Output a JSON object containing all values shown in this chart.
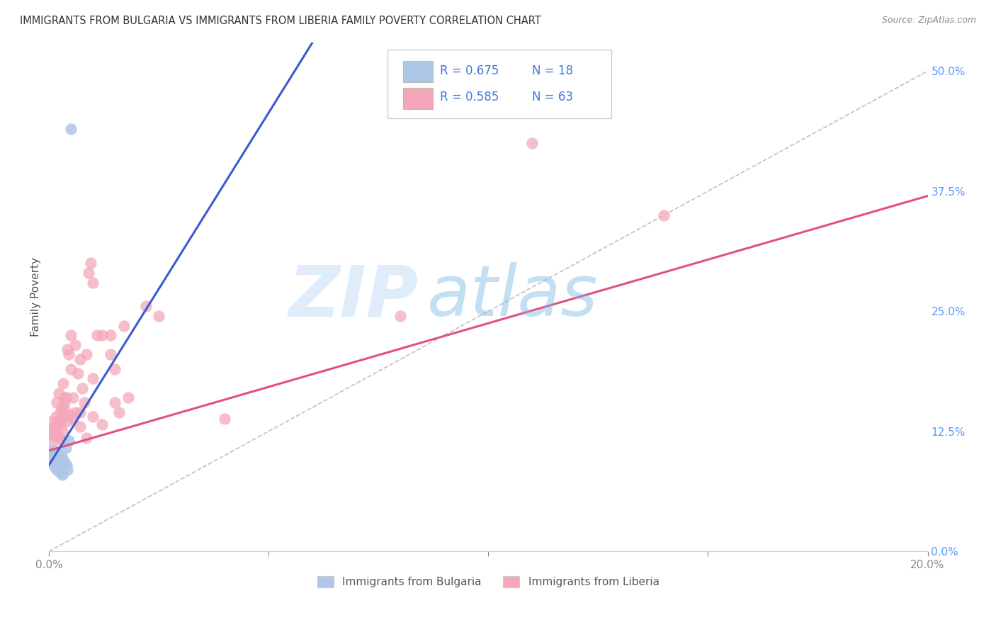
{
  "title": "IMMIGRANTS FROM BULGARIA VS IMMIGRANTS FROM LIBERIA FAMILY POVERTY CORRELATION CHART",
  "source": "Source: ZipAtlas.com",
  "ylabel": "Family Poverty",
  "y_tick_labels": [
    "0.0%",
    "12.5%",
    "25.0%",
    "37.5%",
    "50.0%"
  ],
  "y_tick_values": [
    0.0,
    12.5,
    25.0,
    37.5,
    50.0
  ],
  "xlim": [
    0.0,
    20.0
  ],
  "ylim": [
    0.0,
    53.0
  ],
  "bulgaria_color": "#aec6e8",
  "liberia_color": "#f4a7b9",
  "bulgaria_line_color": "#3a5ccc",
  "liberia_line_color": "#e05080",
  "diagonal_color": "#c0c0c0",
  "watermark_zip": "ZIP",
  "watermark_atlas": "atlas",
  "bulgaria_scatter": [
    [
      0.05,
      10.5
    ],
    [
      0.08,
      9.8
    ],
    [
      0.1,
      9.2
    ],
    [
      0.12,
      8.8
    ],
    [
      0.15,
      9.0
    ],
    [
      0.18,
      8.5
    ],
    [
      0.2,
      10.2
    ],
    [
      0.22,
      9.5
    ],
    [
      0.25,
      8.2
    ],
    [
      0.28,
      9.8
    ],
    [
      0.3,
      8.0
    ],
    [
      0.32,
      9.5
    ],
    [
      0.35,
      9.2
    ],
    [
      0.38,
      10.8
    ],
    [
      0.4,
      9.0
    ],
    [
      0.42,
      8.5
    ],
    [
      0.45,
      11.5
    ],
    [
      0.5,
      44.0
    ]
  ],
  "liberia_scatter": [
    [
      0.05,
      12.2
    ],
    [
      0.06,
      13.5
    ],
    [
      0.08,
      12.5
    ],
    [
      0.1,
      11.5
    ],
    [
      0.1,
      13.0
    ],
    [
      0.12,
      10.5
    ],
    [
      0.15,
      14.0
    ],
    [
      0.15,
      12.8
    ],
    [
      0.15,
      12.0
    ],
    [
      0.18,
      15.5
    ],
    [
      0.2,
      13.5
    ],
    [
      0.2,
      12.0
    ],
    [
      0.22,
      16.5
    ],
    [
      0.25,
      14.5
    ],
    [
      0.25,
      13.2
    ],
    [
      0.28,
      15.0
    ],
    [
      0.3,
      13.8
    ],
    [
      0.3,
      12.5
    ],
    [
      0.3,
      11.5
    ],
    [
      0.32,
      17.5
    ],
    [
      0.35,
      16.0
    ],
    [
      0.35,
      15.5
    ],
    [
      0.35,
      14.8
    ],
    [
      0.38,
      16.0
    ],
    [
      0.4,
      14.0
    ],
    [
      0.4,
      13.5
    ],
    [
      0.42,
      21.0
    ],
    [
      0.45,
      20.5
    ],
    [
      0.5,
      22.5
    ],
    [
      0.5,
      19.0
    ],
    [
      0.5,
      14.2
    ],
    [
      0.55,
      16.0
    ],
    [
      0.55,
      13.8
    ],
    [
      0.6,
      21.5
    ],
    [
      0.6,
      14.5
    ],
    [
      0.65,
      18.5
    ],
    [
      0.7,
      20.0
    ],
    [
      0.7,
      14.5
    ],
    [
      0.7,
      13.0
    ],
    [
      0.75,
      17.0
    ],
    [
      0.8,
      15.5
    ],
    [
      0.85,
      20.5
    ],
    [
      0.85,
      11.8
    ],
    [
      0.9,
      29.0
    ],
    [
      0.95,
      30.0
    ],
    [
      1.0,
      28.0
    ],
    [
      1.0,
      18.0
    ],
    [
      1.0,
      14.0
    ],
    [
      1.1,
      22.5
    ],
    [
      1.2,
      22.5
    ],
    [
      1.2,
      13.2
    ],
    [
      1.4,
      22.5
    ],
    [
      1.4,
      20.5
    ],
    [
      1.5,
      19.0
    ],
    [
      1.5,
      15.5
    ],
    [
      1.6,
      14.5
    ],
    [
      1.7,
      23.5
    ],
    [
      1.8,
      16.0
    ],
    [
      2.2,
      25.5
    ],
    [
      2.5,
      24.5
    ],
    [
      4.0,
      13.8
    ],
    [
      8.0,
      24.5
    ],
    [
      11.0,
      42.5
    ],
    [
      14.0,
      35.0
    ]
  ],
  "bulgaria_trendline": [
    [
      0.0,
      9.0
    ],
    [
      6.0,
      53.0
    ]
  ],
  "liberia_trendline": [
    [
      0.0,
      10.5
    ],
    [
      20.0,
      37.0
    ]
  ],
  "diagonal_line": [
    [
      0.0,
      0.0
    ],
    [
      20.0,
      50.0
    ]
  ]
}
